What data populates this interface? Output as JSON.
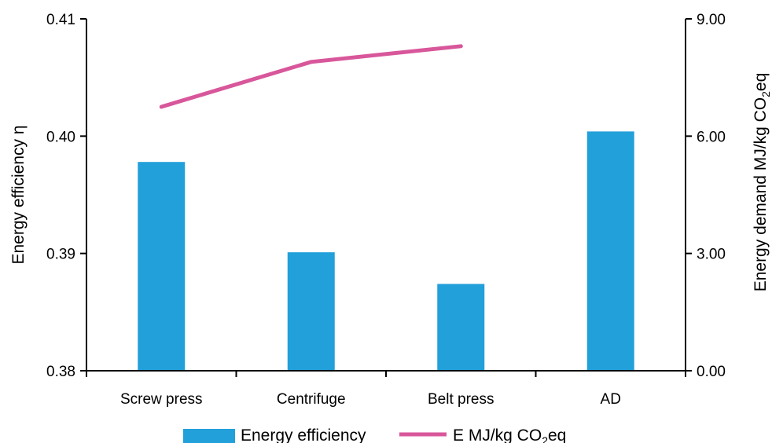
{
  "chart_data": {
    "type": "bar",
    "categories": [
      "Screw press",
      "Centrifuge",
      "Belt press",
      "AD"
    ],
    "title": "",
    "ylabel": "Energy efficiency η",
    "y2label_main": "Energy demand MJ/kg CO",
    "y2label_sub": "2",
    "y2label_end": "eq",
    "ylim": [
      0.38,
      0.41
    ],
    "y2lim": [
      0,
      9
    ],
    "yticks": [
      "0.38",
      "0.39",
      "0.40",
      "0.41"
    ],
    "y2ticks": [
      "0.00",
      "3.00",
      "6.00",
      "9.00"
    ],
    "series": [
      {
        "name": "Energy efficiency",
        "type": "bar",
        "axis": "left",
        "color": "#22A0DA",
        "values": [
          0.3978,
          0.3901,
          0.3874,
          0.4004
        ]
      },
      {
        "name_main": "E MJ/kg CO",
        "name_sub": "2",
        "name_end": "eq",
        "type": "line",
        "axis": "right",
        "color": "#D8579B",
        "values": [
          6.75,
          7.9,
          8.3,
          null
        ]
      }
    ],
    "legend_position": "bottom",
    "grid": false
  }
}
